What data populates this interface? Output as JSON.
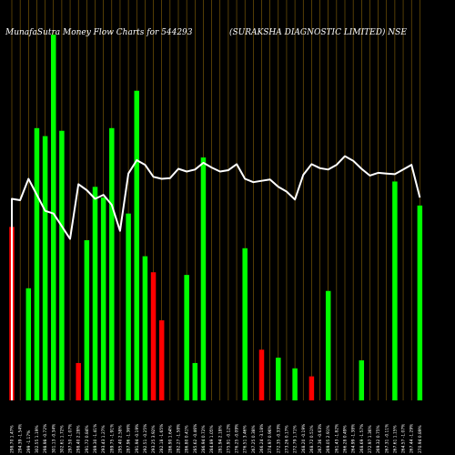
{
  "chart_data": {
    "type": "bar",
    "title_left": "MunafaSutra Money Flow Charts for 544293",
    "title_right": "(SURAKSHA DIAGNOSTIC LIMITED) NSE",
    "colors": {
      "up": "#00ff00",
      "down": "#ff0000",
      "line": "#ffffff",
      "grid": "#b8860b",
      "background": "#000000"
    },
    "categories": [
      "298.70 1.47%",
      "294.39 -1.54%",
      "299 -1.17%",
      "302.55 1.19%",
      "298.98 -0.72%",
      "301.13 -0.34%",
      "302.61 1.72%",
      "297.50 -1.07%",
      "298.40 2.28%",
      "291.72 0.84%",
      "289.30 -1.41%",
      "293.43 1.27%",
      "289.75 -1.91%",
      "295.40 2.58%",
      "287.96 -1.36%",
      "291.94 -0.19%",
      "292.51 -0.25%",
      "293.25 3.92%",
      "282.18 -1.65%",
      "286.90 1.64%",
      "282.27 -1.58%",
      "286.80 0.41%",
      "285.62 -0.46%",
      "286.94 0.72%",
      "284.89 1.05%",
      "281.94 2.18%",
      "275.91 -0.12%",
      "276.25 -0.09%",
      "276.51 3.46%",
      "267.25 0.38%",
      "266.24 -3.18%",
      "274.97 0.96%",
      "272.35 -0.33%",
      "273.26 0.17%",
      "272.79 1.71%",
      "268.20 -0.19%",
      "268.72 0.51%",
      "267.36 -0.63%",
      "269.05 2.91%",
      "261.43 -1.82%",
      "266.28 0.49%",
      "264.99 -1.38%",
      "268.69 -1.57%",
      "272.97 1.36%",
      "269.32 0.75%",
      "267.31 -0.11%",
      "267.61 1.15%",
      "264.57 -1.07%",
      "267.44 -1.29%",
      "270.94 0.89%"
    ],
    "values": [
      65,
      0,
      42,
      102,
      99,
      137,
      101,
      0,
      14,
      60,
      80,
      76,
      102,
      0,
      70,
      116,
      54,
      48,
      30,
      0,
      0,
      47,
      14,
      91,
      0,
      0,
      0,
      0,
      57,
      0,
      19,
      0,
      16,
      0,
      12,
      0,
      9,
      0,
      41,
      0,
      0,
      0,
      15,
      0,
      0,
      0,
      82,
      0,
      0,
      73
    ],
    "directions": [
      "down",
      "up",
      "up",
      "up",
      "up",
      "up",
      "up",
      "up",
      "down",
      "up",
      "up",
      "up",
      "up",
      "up",
      "up",
      "up",
      "up",
      "down",
      "down",
      "up",
      "down",
      "up",
      "up",
      "up",
      "up",
      "up",
      "down",
      "up",
      "up",
      "up",
      "down",
      "down",
      "up",
      "down",
      "up",
      "down",
      "down",
      "up",
      "up",
      "down",
      "up",
      "up",
      "up",
      "up",
      "down",
      "up",
      "up",
      "down",
      "up",
      "up"
    ],
    "line_values": [
      30.2,
      30.0,
      33.2,
      30.8,
      28.4,
      28.0,
      26.1,
      24.2,
      32.4,
      31.5,
      30.2,
      30.8,
      29.3,
      25.4,
      34.0,
      36.0,
      35.3,
      33.5,
      33.2,
      33.3,
      34.7,
      34.3,
      34.6,
      35.6,
      34.9,
      34.3,
      34.5,
      35.4,
      33.2,
      32.7,
      32.9,
      33.1,
      32.0,
      31.3,
      30.1,
      33.8,
      35.4,
      34.8,
      34.6,
      35.3,
      36.6,
      35.9,
      34.7,
      33.7,
      34.1,
      34.0,
      33.9,
      34.6,
      35.3,
      30.4
    ],
    "ylim": [
      0,
      150
    ],
    "line_ylim": [
      0,
      60
    ]
  }
}
